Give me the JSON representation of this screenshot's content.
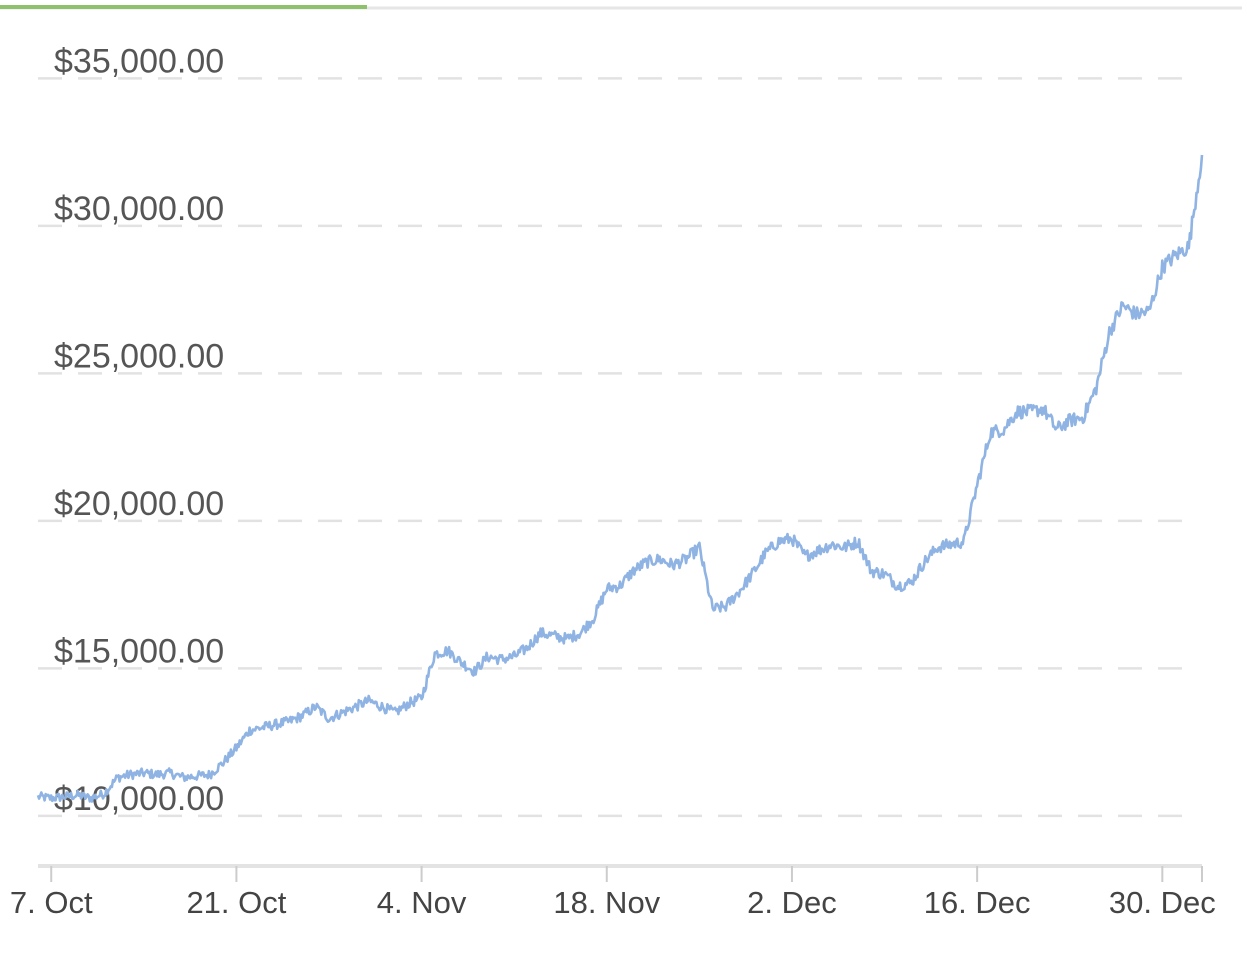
{
  "header": {
    "active_tab_color": "#8dc26b",
    "divider_color": "#e6e6e6"
  },
  "chart_data": {
    "type": "line",
    "title": "",
    "xlabel": "",
    "ylabel": "",
    "ylim": [
      8300,
      36300
    ],
    "xlim": [
      "2020-10-06",
      "2021-01-02"
    ],
    "grid": true,
    "legend": "none",
    "line_color": "#8fb3e3",
    "y_ticks": [
      {
        "value": 10000,
        "label": "$10,000.00"
      },
      {
        "value": 15000,
        "label": "$15,000.00"
      },
      {
        "value": 20000,
        "label": "$20,000.00"
      },
      {
        "value": 25000,
        "label": "$25,000.00"
      },
      {
        "value": 30000,
        "label": "$30,000.00"
      },
      {
        "value": 35000,
        "label": "$35,000.00"
      }
    ],
    "x_ticks": [
      {
        "value": "2020-10-07",
        "label": "7. Oct"
      },
      {
        "value": "2020-10-21",
        "label": "21. Oct"
      },
      {
        "value": "2020-11-04",
        "label": "4. Nov"
      },
      {
        "value": "2020-11-18",
        "label": "18. Nov"
      },
      {
        "value": "2020-12-02",
        "label": "2. Dec"
      },
      {
        "value": "2020-12-16",
        "label": "16. Dec"
      },
      {
        "value": "2020-12-30",
        "label": "30. Dec"
      }
    ],
    "series": [
      {
        "x": [
          "2020-10-06",
          "2020-10-07",
          "2020-10-08",
          "2020-10-09",
          "2020-10-10",
          "2020-10-11",
          "2020-10-12",
          "2020-10-13",
          "2020-10-14",
          "2020-10-15",
          "2020-10-16",
          "2020-10-17",
          "2020-10-18",
          "2020-10-19",
          "2020-10-20",
          "2020-10-21",
          "2020-10-22",
          "2020-10-23",
          "2020-10-24",
          "2020-10-25",
          "2020-10-26",
          "2020-10-27",
          "2020-10-28",
          "2020-10-29",
          "2020-10-30",
          "2020-10-31",
          "2020-11-01",
          "2020-11-02",
          "2020-11-03",
          "2020-11-04",
          "2020-11-05",
          "2020-11-06",
          "2020-11-07",
          "2020-11-08",
          "2020-11-09",
          "2020-11-10",
          "2020-11-11",
          "2020-11-12",
          "2020-11-13",
          "2020-11-14",
          "2020-11-15",
          "2020-11-16",
          "2020-11-17",
          "2020-11-18",
          "2020-11-19",
          "2020-11-20",
          "2020-11-21",
          "2020-11-22",
          "2020-11-23",
          "2020-11-24",
          "2020-11-25",
          "2020-11-26",
          "2020-11-27",
          "2020-11-28",
          "2020-11-29",
          "2020-11-30",
          "2020-12-01",
          "2020-12-02",
          "2020-12-03",
          "2020-12-04",
          "2020-12-05",
          "2020-12-06",
          "2020-12-07",
          "2020-12-08",
          "2020-12-09",
          "2020-12-10",
          "2020-12-11",
          "2020-12-12",
          "2020-12-13",
          "2020-12-14",
          "2020-12-15",
          "2020-12-16",
          "2020-12-17",
          "2020-12-18",
          "2020-12-19",
          "2020-12-20",
          "2020-12-21",
          "2020-12-22",
          "2020-12-23",
          "2020-12-24",
          "2020-12-25",
          "2020-12-26",
          "2020-12-27",
          "2020-12-28",
          "2020-12-29",
          "2020-12-30",
          "2020-12-31",
          "2021-01-01",
          "2021-01-02"
        ],
        "values": [
          10650,
          10600,
          10650,
          10700,
          10600,
          10750,
          11300,
          11400,
          11450,
          11400,
          11450,
          11300,
          11350,
          11400,
          11800,
          12300,
          12900,
          13000,
          13100,
          13200,
          13400,
          13700,
          13300,
          13500,
          13700,
          13900,
          13700,
          13500,
          13800,
          14000,
          15500,
          15600,
          15200,
          14900,
          15400,
          15300,
          15400,
          15700,
          16200,
          16100,
          16000,
          16200,
          16700,
          17700,
          17800,
          18300,
          18600,
          18700,
          18500,
          18700,
          19100,
          17000,
          17100,
          17600,
          18200,
          18900,
          19300,
          19400,
          18800,
          19000,
          19200,
          19100,
          19300,
          18300,
          18200,
          17800,
          17900,
          18600,
          19100,
          19200,
          19300,
          21200,
          23000,
          23100,
          23700,
          23700,
          23800,
          23100,
          23400,
          23500,
          24500,
          26400,
          27300,
          27000,
          27100,
          28600,
          29000,
          29300,
          32400
        ]
      }
    ]
  }
}
